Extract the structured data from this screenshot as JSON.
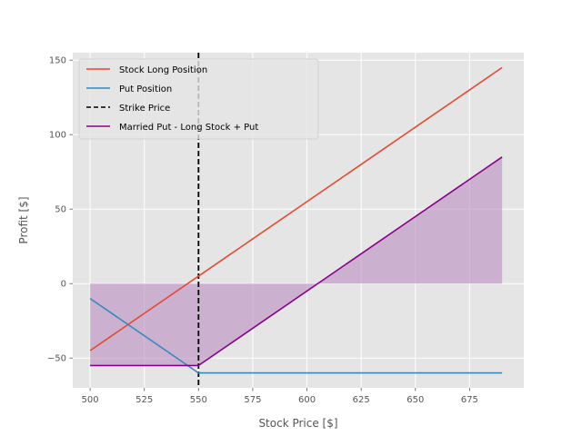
{
  "chart_data": {
    "type": "line",
    "xlabel": "Stock Price [$]",
    "ylabel": "Profit [$]",
    "xlim": [
      492,
      700
    ],
    "ylim": [
      -70,
      155
    ],
    "xticks": [
      500,
      525,
      550,
      575,
      600,
      625,
      650,
      675
    ],
    "yticks": [
      -50,
      0,
      50,
      100,
      150
    ],
    "grid": true,
    "legend_placement": "upper-left",
    "strike_price": 550,
    "series": [
      {
        "name": "Stock Long Position",
        "color": "#E24A33",
        "style": "solid",
        "x": [
          500,
          690
        ],
        "y": [
          -45,
          145
        ]
      },
      {
        "name": "Put Position",
        "color": "#348ABD",
        "style": "solid",
        "x": [
          500,
          550,
          690
        ],
        "y": [
          -10,
          -60,
          -60
        ]
      },
      {
        "name": "Strike Price",
        "color": "#000000",
        "style": "dashed",
        "vertical_line_x": 550
      },
      {
        "name": "Married Put - Long Stock + Put",
        "color": "#8B008B",
        "style": "solid",
        "x": [
          500,
          550,
          690
        ],
        "y": [
          -55,
          -55,
          85
        ],
        "fill_to_zero": true,
        "fill_color": "#BA8CC0"
      }
    ]
  }
}
